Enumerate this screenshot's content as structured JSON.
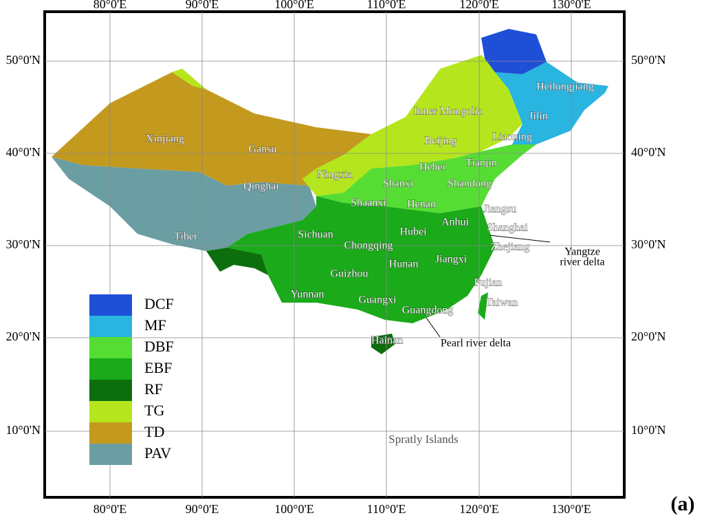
{
  "map": {
    "x_labels": [
      "80°0'E",
      "90°0'E",
      "100°0'E",
      "110°0'E",
      "120°0'E",
      "130°0'E"
    ],
    "y_labels": [
      "50°0'N",
      "40°0'N",
      "30°0'N",
      "20°0'N",
      "10°0'N"
    ],
    "legend": [
      {
        "label": "DCF",
        "color": "#1f4fd6"
      },
      {
        "label": "MF",
        "color": "#29b5e0"
      },
      {
        "label": "DBF",
        "color": "#55dd33"
      },
      {
        "label": "EBF",
        "color": "#1aaa1a"
      },
      {
        "label": "RF",
        "color": "#0d6e0d"
      },
      {
        "label": "TG",
        "color": "#b5e61d"
      },
      {
        "label": "TD",
        "color": "#c49a1e"
      },
      {
        "label": "PAV",
        "color": "#6a9ea3"
      }
    ],
    "provinces": [
      "Xinjiang",
      "Gansu",
      "Qinghai",
      "Tibet",
      "Inner Mongolia",
      "Heilongjiang",
      "Jilin",
      "Liaoning",
      "Beijing",
      "Tianjin",
      "Hebei",
      "Ningxia",
      "Shanxi",
      "Shandong",
      "Shaanxi",
      "Henan",
      "Jiangsu",
      "Anhui",
      "Shanghai",
      "Sichuan",
      "Chongqing",
      "Hubei",
      "Zhejiang",
      "Jiangxi",
      "Hunan",
      "Guizhou",
      "Fujian",
      "Yunnan",
      "Guangxi",
      "Guangdong",
      "Taiwan",
      "Hainan"
    ],
    "annotations": {
      "yangtze": [
        "Yangtze",
        "river delta"
      ],
      "pearl": "Pearl river delta",
      "spratly": "Spratly Islands"
    },
    "panel_label": "(a)"
  }
}
